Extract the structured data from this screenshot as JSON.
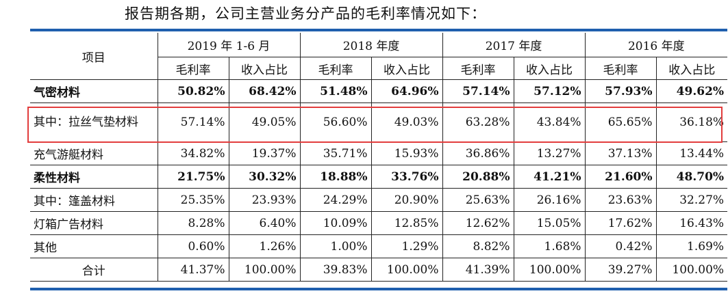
{
  "intro": "报告期各期，公司主营业务分产品的毛利率情况如下：",
  "header": {
    "item": "项目",
    "periods": [
      "2019 年 1-6 月",
      "2018 年度",
      "2017 年度",
      "2016 年度"
    ],
    "subcols": [
      "毛利率",
      "收入占比"
    ]
  },
  "rows": [
    {
      "label": "气密材料",
      "bold": true,
      "values": [
        "50.82%",
        "68.42%",
        "51.48%",
        "64.96%",
        "57.14%",
        "57.12%",
        "57.93%",
        "49.62%"
      ]
    },
    {
      "label": "其中：拉丝气垫材料",
      "bold": false,
      "highlight": true,
      "values": [
        "57.14%",
        "49.05%",
        "56.60%",
        "49.03%",
        "63.28%",
        "43.84%",
        "65.65%",
        "36.18%"
      ]
    },
    {
      "label": "充气游艇材料",
      "bold": false,
      "values": [
        "34.82%",
        "19.37%",
        "35.71%",
        "15.93%",
        "36.86%",
        "13.27%",
        "37.13%",
        "13.44%"
      ]
    },
    {
      "label": "柔性材料",
      "bold": true,
      "values": [
        "21.75%",
        "30.32%",
        "18.88%",
        "33.76%",
        "20.88%",
        "41.21%",
        "21.60%",
        "48.70%"
      ]
    },
    {
      "label": "其中：篷盖材料",
      "bold": false,
      "values": [
        "25.35%",
        "23.93%",
        "24.29%",
        "20.90%",
        "25.63%",
        "26.16%",
        "23.63%",
        "32.27%"
      ]
    },
    {
      "label": "灯箱广告材料",
      "bold": false,
      "values": [
        "8.28%",
        "6.40%",
        "10.09%",
        "12.85%",
        "12.62%",
        "15.05%",
        "17.62%",
        "16.43%"
      ]
    },
    {
      "label": "其他",
      "bold": false,
      "values": [
        "0.60%",
        "1.26%",
        "1.00%",
        "1.29%",
        "8.82%",
        "1.68%",
        "0.42%",
        "1.69%"
      ]
    },
    {
      "label": "合计",
      "bold": false,
      "total": true,
      "values": [
        "41.37%",
        "100.00%",
        "39.83%",
        "100.00%",
        "41.39%",
        "100.00%",
        "39.27%",
        "100.00%"
      ]
    }
  ],
  "colors": {
    "rule": "#1f5fae",
    "highlight": "#e23c3c"
  }
}
